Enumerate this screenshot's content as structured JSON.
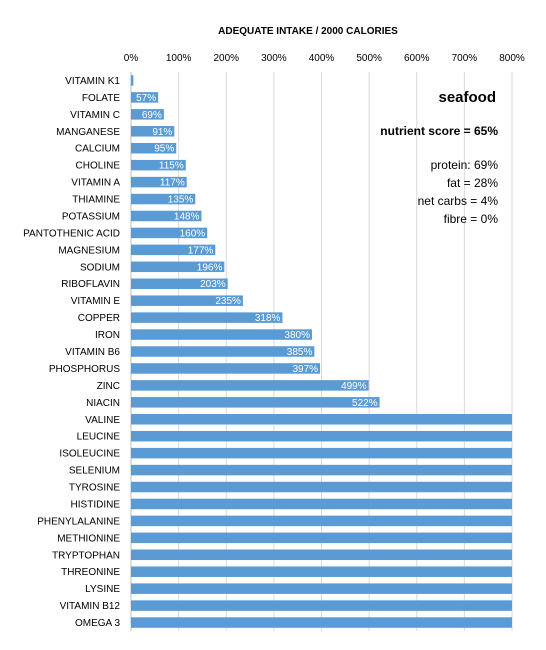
{
  "chart_data": {
    "type": "bar",
    "orientation": "horizontal",
    "title": "ADEQUATE INTAKE / 2000 CALORIES",
    "xlim": [
      0,
      800
    ],
    "x_ticks": [
      "0%",
      "100%",
      "200%",
      "300%",
      "400%",
      "500%",
      "600%",
      "700%",
      "800%"
    ],
    "grid": true,
    "bar_color": "#5b9bd5",
    "categories": [
      "VITAMIN K1",
      "FOLATE",
      "VITAMIN C",
      "MANGANESE",
      "CALCIUM",
      "CHOLINE",
      "VITAMIN A",
      "THIAMINE",
      "POTASSIUM",
      "PANTOTHENIC ACID",
      "MAGNESIUM",
      "SODIUM",
      "RIBOFLAVIN",
      "VITAMIN E",
      "COPPER",
      "IRON",
      "VITAMIN B6",
      "PHOSPHORUS",
      "ZINC",
      "NIACIN",
      "VALINE",
      "LEUCINE",
      "ISOLEUCINE",
      "SELENIUM",
      "TYROSINE",
      "HISTIDINE",
      "PHENYLALANINE",
      "METHIONINE",
      "TRYPTOPHAN",
      "THREONINE",
      "LYSINE",
      "VITAMIN B12",
      "OMEGA 3"
    ],
    "values": [
      5,
      57,
      69,
      91,
      95,
      115,
      117,
      135,
      148,
      160,
      177,
      196,
      203,
      235,
      318,
      380,
      385,
      397,
      499,
      522,
      800,
      800,
      800,
      800,
      800,
      800,
      800,
      800,
      800,
      800,
      800,
      800,
      800
    ],
    "data_labels": [
      "",
      "57%",
      "69%",
      "91%",
      "95%",
      "115%",
      "117%",
      "135%",
      "148%",
      "160%",
      "177%",
      "196%",
      "203%",
      "235%",
      "318%",
      "380%",
      "385%",
      "397%",
      "499%",
      "522%",
      "",
      "",
      "",
      "",
      "",
      "",
      "",
      "",
      "",
      "",
      "",
      "",
      ""
    ]
  },
  "annotations": {
    "heading": "seafood",
    "score": "nutrient score = 65%",
    "protein": "protein: 69%",
    "fat": "fat = 28%",
    "net_carbs": "net carbs = 4%",
    "fibre": "fibre = 0%"
  }
}
